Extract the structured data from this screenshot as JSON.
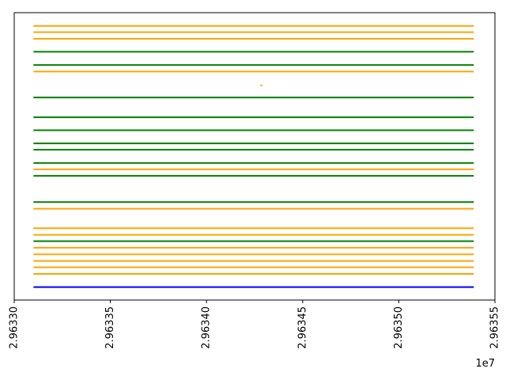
{
  "chart_data": {
    "type": "line",
    "title": "",
    "xlabel": "",
    "ylabel": "",
    "xlim": [
      29633000,
      29635500
    ],
    "x_offset_label": "1e7",
    "x_ticks": [
      29633000,
      29633500,
      29634000,
      29634500,
      29635000,
      29635500
    ],
    "x_tick_labels": [
      "2.96330",
      "2.96335",
      "2.96340",
      "2.96345",
      "2.96350",
      "2.96355"
    ],
    "y_axis_visible": false,
    "grid": false,
    "ylim": [
      0,
      1
    ],
    "colors": {
      "orange": "#ffa500",
      "green": "#008000",
      "blue": "#0000ff"
    },
    "segments": [
      {
        "x": [
          29633100,
          29635390
        ],
        "y": 0.954,
        "color": "orange"
      },
      {
        "x": [
          29633100,
          29635390
        ],
        "y": 0.932,
        "color": "orange"
      },
      {
        "x": [
          29633100,
          29635390
        ],
        "y": 0.909,
        "color": "orange"
      },
      {
        "x": [
          29633100,
          29635390
        ],
        "y": 0.864,
        "color": "green"
      },
      {
        "x": [
          29633100,
          29635390
        ],
        "y": 0.818,
        "color": "green"
      },
      {
        "x": [
          29633100,
          29635390
        ],
        "y": 0.795,
        "color": "orange"
      },
      {
        "x": [
          29634280,
          29634290
        ],
        "y": 0.747,
        "color": "orange"
      },
      {
        "x": [
          29633100,
          29635390
        ],
        "y": 0.705,
        "color": "green"
      },
      {
        "x": [
          29633100,
          29635390
        ],
        "y": 0.636,
        "color": "green"
      },
      {
        "x": [
          29633100,
          29635390
        ],
        "y": 0.591,
        "color": "green"
      },
      {
        "x": [
          29633100,
          29635390
        ],
        "y": 0.545,
        "color": "green"
      },
      {
        "x": [
          29633100,
          29635390
        ],
        "y": 0.523,
        "color": "green"
      },
      {
        "x": [
          29633100,
          29635390
        ],
        "y": 0.477,
        "color": "green"
      },
      {
        "x": [
          29633100,
          29635390
        ],
        "y": 0.455,
        "color": "orange"
      },
      {
        "x": [
          29633100,
          29635390
        ],
        "y": 0.432,
        "color": "green"
      },
      {
        "x": [
          29633100,
          29635390
        ],
        "y": 0.341,
        "color": "green"
      },
      {
        "x": [
          29633100,
          29635390
        ],
        "y": 0.318,
        "color": "orange"
      },
      {
        "x": [
          29633100,
          29635390
        ],
        "y": 0.25,
        "color": "orange"
      },
      {
        "x": [
          29633100,
          29635390
        ],
        "y": 0.227,
        "color": "orange"
      },
      {
        "x": [
          29633100,
          29635390
        ],
        "y": 0.205,
        "color": "green"
      },
      {
        "x": [
          29633100,
          29635390
        ],
        "y": 0.182,
        "color": "orange"
      },
      {
        "x": [
          29633100,
          29635390
        ],
        "y": 0.159,
        "color": "orange"
      },
      {
        "x": [
          29633100,
          29635390
        ],
        "y": 0.136,
        "color": "orange"
      },
      {
        "x": [
          29633100,
          29635390
        ],
        "y": 0.114,
        "color": "orange"
      },
      {
        "x": [
          29633100,
          29635390
        ],
        "y": 0.091,
        "color": "orange"
      },
      {
        "x": [
          29633100,
          29635390
        ],
        "y": 0.045,
        "color": "blue"
      }
    ]
  }
}
